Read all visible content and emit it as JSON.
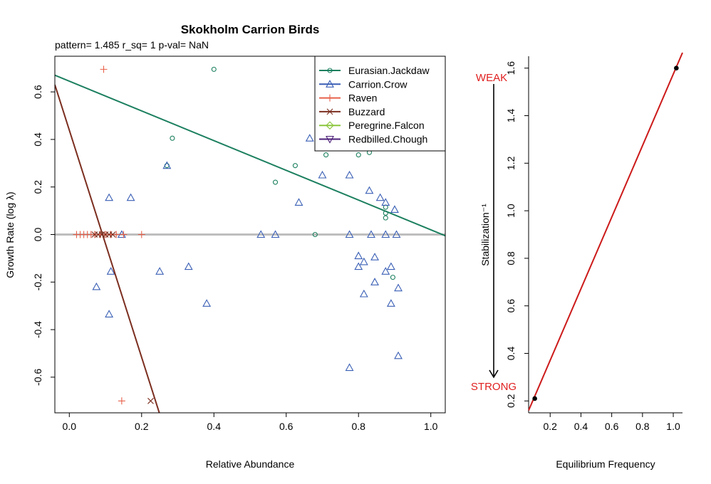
{
  "chart_data": [
    {
      "type": "scatter",
      "title": "Skokholm Carrion Birds",
      "subtitle": "pattern= 1.485 r_sq= 1 p-val= NaN",
      "xlabel": "Relative Abundance",
      "ylabel": "Growth Rate (log λ)",
      "xlim": [
        -0.04,
        1.04
      ],
      "ylim": [
        -0.75,
        0.75
      ],
      "xticks": [
        "0.0",
        "0.2",
        "0.4",
        "0.6",
        "0.8",
        "1.0"
      ],
      "xtick_values": [
        0,
        0.2,
        0.4,
        0.6,
        0.8,
        1.0
      ],
      "yticks": [
        "-0.6",
        "-0.4",
        "-0.2",
        "0.0",
        "0.2",
        "0.4",
        "0.6"
      ],
      "ytick_values": [
        -0.6,
        -0.4,
        -0.2,
        0,
        0.2,
        0.4,
        0.6
      ],
      "zero_line": {
        "y": 0,
        "color": "#bebebe"
      },
      "legend_position": "top-right",
      "series": [
        {
          "name": "Eurasian.Jackdaw",
          "color": "#1b7f5f",
          "marker": "circle",
          "points": [
            [
              0.4,
              0.695
            ],
            [
              0.285,
              0.405
            ],
            [
              0.27,
              0.29
            ],
            [
              0.625,
              0.29
            ],
            [
              0.57,
              0.22
            ],
            [
              0.68,
              0.0
            ],
            [
              0.71,
              0.335
            ],
            [
              0.8,
              0.335
            ],
            [
              0.83,
              0.345
            ],
            [
              0.875,
              0.115
            ],
            [
              0.875,
              0.09
            ],
            [
              0.875,
              0.07
            ],
            [
              0.895,
              -0.18
            ],
            [
              0.89,
              0.43
            ],
            [
              0.83,
              0.5
            ]
          ],
          "trend": {
            "from": [
              -0.04,
              0.67
            ],
            "to": [
              1.04,
              -0.005
            ]
          }
        },
        {
          "name": "Carrion.Crow",
          "color": "#3a5fb5",
          "marker": "triangle",
          "points": [
            [
              0.27,
              0.29
            ],
            [
              0.11,
              0.155
            ],
            [
              0.17,
              0.155
            ],
            [
              0.145,
              0.0
            ],
            [
              0.075,
              -0.22
            ],
            [
              0.115,
              -0.155
            ],
            [
              0.11,
              -0.335
            ],
            [
              0.25,
              -0.155
            ],
            [
              0.33,
              -0.135
            ],
            [
              0.38,
              -0.29
            ],
            [
              0.53,
              0.0
            ],
            [
              0.57,
              0.0
            ],
            [
              0.635,
              0.135
            ],
            [
              0.665,
              0.405
            ],
            [
              0.7,
              0.25
            ],
            [
              0.775,
              0.25
            ],
            [
              0.775,
              0.0
            ],
            [
              0.8,
              -0.09
            ],
            [
              0.8,
              -0.135
            ],
            [
              0.815,
              -0.115
            ],
            [
              0.815,
              -0.25
            ],
            [
              0.83,
              0.185
            ],
            [
              0.835,
              0.0
            ],
            [
              0.845,
              -0.095
            ],
            [
              0.845,
              -0.2
            ],
            [
              0.86,
              0.155
            ],
            [
              0.875,
              0.135
            ],
            [
              0.875,
              0.0
            ],
            [
              0.875,
              -0.155
            ],
            [
              0.89,
              -0.135
            ],
            [
              0.89,
              -0.29
            ],
            [
              0.9,
              0.105
            ],
            [
              0.905,
              0.0
            ],
            [
              0.91,
              -0.225
            ],
            [
              0.91,
              -0.51
            ],
            [
              0.775,
              -0.56
            ],
            [
              0.8,
              0.41
            ],
            [
              0.86,
              0.52
            ],
            [
              0.88,
              0.455
            ]
          ]
        },
        {
          "name": "Raven",
          "color": "#e8604a",
          "marker": "plus",
          "points": [
            [
              0.095,
              0.695
            ],
            [
              0.145,
              -0.7
            ],
            [
              0.2,
              0.0
            ],
            [
              0.02,
              0.0
            ],
            [
              0.03,
              0.0
            ],
            [
              0.04,
              0.0
            ],
            [
              0.05,
              0.0
            ],
            [
              0.06,
              0.0
            ],
            [
              0.07,
              0.0
            ],
            [
              0.085,
              0.0
            ],
            [
              0.1,
              0.0
            ],
            [
              0.115,
              0.0
            ],
            [
              0.13,
              0.0
            ],
            [
              0.15,
              0.0
            ]
          ]
        },
        {
          "name": "Buzzard",
          "color": "#7b2e1f",
          "marker": "x",
          "points": [
            [
              0.07,
              0.0
            ],
            [
              0.08,
              0.0
            ],
            [
              0.09,
              0.0
            ],
            [
              0.1,
              0.0
            ],
            [
              0.11,
              0.0
            ],
            [
              0.12,
              0.0
            ],
            [
              0.225,
              -0.7
            ]
          ],
          "trend": {
            "from": [
              -0.04,
              0.63
            ],
            "to": [
              0.25,
              -0.755
            ]
          }
        },
        {
          "name": "Peregrine.Falcon",
          "color": "#8cc63e",
          "marker": "diamond",
          "points": []
        },
        {
          "name": "Redbilled.Chough",
          "color": "#4b1e78",
          "marker": "triangle-down",
          "points": []
        }
      ]
    },
    {
      "type": "line",
      "xlabel": "Equilibrium Frequency",
      "ylabel": "Stabilization⁻¹",
      "xlim": [
        0.06,
        1.06
      ],
      "ylim": [
        0.15,
        1.65
      ],
      "xticks": [
        "0.2",
        "0.4",
        "0.6",
        "0.8",
        "1.0"
      ],
      "xtick_values": [
        0.2,
        0.4,
        0.6,
        0.8,
        1.0
      ],
      "yticks": [
        "0.2",
        "0.4",
        "0.6",
        "0.8",
        "1.0",
        "1.2",
        "1.4",
        "1.6"
      ],
      "ytick_values": [
        0.2,
        0.4,
        0.6,
        0.8,
        1.0,
        1.2,
        1.4,
        1.6
      ],
      "line": {
        "color": "#cc1a1a",
        "from": [
          0.06,
          0.16
        ],
        "to": [
          1.06,
          1.665
        ]
      },
      "points": [
        [
          0.1,
          0.21
        ],
        [
          1.02,
          1.6
        ]
      ],
      "annotations": {
        "weak": "WEAK",
        "strong": "STRONG",
        "color": "#e02020"
      }
    }
  ]
}
